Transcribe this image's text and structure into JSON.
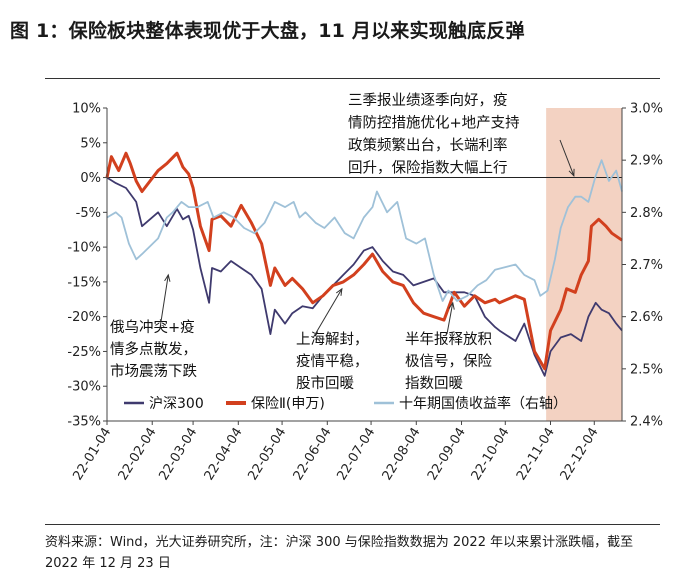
{
  "page": {
    "title": "图 1：保险板块整体表现优于大盘，11 月以来实现触底反弹",
    "source_text": "资料来源：Wind，光大证券研究所，注：沪深 300 与保险指数数据为 2022 年以来累计涨跌幅，截至 2022 年 12 月 23 日"
  },
  "chart_data": {
    "type": "line",
    "title": "",
    "y_left": {
      "ticks": [
        "10%",
        "5%",
        "0%",
        "-5%",
        "-10%",
        "-15%",
        "-20%",
        "-25%",
        "-30%",
        "-35%"
      ],
      "range": [
        -35,
        10
      ],
      "unit": "%"
    },
    "y_right": {
      "ticks": [
        "3.0%",
        "2.9%",
        "2.8%",
        "2.7%",
        "2.6%",
        "2.5%",
        "2.4%"
      ],
      "range": [
        2.4,
        3.0
      ],
      "unit": "%"
    },
    "x_ticks": [
      "22-01-04",
      "22-02-04",
      "22-03-04",
      "22-04-04",
      "22-05-04",
      "22-06-04",
      "22-07-04",
      "22-08-04",
      "22-09-04",
      "22-10-04",
      "22-11-04",
      "22-12-04"
    ],
    "x_range": [
      "2022-01-04",
      "2022-12-23"
    ],
    "zero_line": true,
    "highlight_range": [
      "2022-11-01",
      "2022-12-23"
    ],
    "highlight_color": "#f3d2c2",
    "series": [
      {
        "name": "沪深300",
        "axis": "left",
        "color": "#3f3a6e",
        "points": [
          [
            "2022-01-04",
            0.0
          ],
          [
            "2022-01-10",
            -0.8
          ],
          [
            "2022-01-17",
            -1.5
          ],
          [
            "2022-01-24",
            -3.5
          ],
          [
            "2022-01-28",
            -7.0
          ],
          [
            "2022-02-08",
            -5.0
          ],
          [
            "2022-02-14",
            -7.0
          ],
          [
            "2022-02-21",
            -4.5
          ],
          [
            "2022-02-25",
            -6.0
          ],
          [
            "2022-03-01",
            -5.5
          ],
          [
            "2022-03-04",
            -7.5
          ],
          [
            "2022-03-09",
            -13.0
          ],
          [
            "2022-03-15",
            -18.0
          ],
          [
            "2022-03-17",
            -13.0
          ],
          [
            "2022-03-23",
            -13.5
          ],
          [
            "2022-03-30",
            -12.0
          ],
          [
            "2022-04-06",
            -13.0
          ],
          [
            "2022-04-13",
            -14.0
          ],
          [
            "2022-04-20",
            -16.0
          ],
          [
            "2022-04-26",
            -22.5
          ],
          [
            "2022-04-29",
            -19.0
          ],
          [
            "2022-05-06",
            -21.0
          ],
          [
            "2022-05-11",
            -19.5
          ],
          [
            "2022-05-18",
            -18.5
          ],
          [
            "2022-05-25",
            -18.8
          ],
          [
            "2022-06-01",
            -17.0
          ],
          [
            "2022-06-08",
            -15.5
          ],
          [
            "2022-06-15",
            -14.0
          ],
          [
            "2022-06-22",
            -12.5
          ],
          [
            "2022-06-29",
            -10.5
          ],
          [
            "2022-07-05",
            -10.0
          ],
          [
            "2022-07-12",
            -12.0
          ],
          [
            "2022-07-19",
            -13.5
          ],
          [
            "2022-07-26",
            -14.0
          ],
          [
            "2022-08-02",
            -15.5
          ],
          [
            "2022-08-09",
            -15.0
          ],
          [
            "2022-08-16",
            -14.5
          ],
          [
            "2022-08-23",
            -16.5
          ],
          [
            "2022-08-30",
            -16.5
          ],
          [
            "2022-09-06",
            -16.5
          ],
          [
            "2022-09-13",
            -17.0
          ],
          [
            "2022-09-20",
            -20.0
          ],
          [
            "2022-09-27",
            -21.5
          ],
          [
            "2022-09-30",
            -22.0
          ],
          [
            "2022-10-11",
            -23.5
          ],
          [
            "2022-10-17",
            -21.0
          ],
          [
            "2022-10-24",
            -25.5
          ],
          [
            "2022-10-31",
            -28.5
          ],
          [
            "2022-11-04",
            -25.0
          ],
          [
            "2022-11-11",
            -23.0
          ],
          [
            "2022-11-18",
            -22.5
          ],
          [
            "2022-11-25",
            -23.5
          ],
          [
            "2022-11-30",
            -20.0
          ],
          [
            "2022-12-05",
            -18.0
          ],
          [
            "2022-12-09",
            -19.0
          ],
          [
            "2022-12-14",
            -19.5
          ],
          [
            "2022-12-19",
            -21.0
          ],
          [
            "2022-12-23",
            -22.0
          ]
        ]
      },
      {
        "name": "保险Ⅱ(申万)",
        "axis": "left",
        "color": "#d2401e",
        "points": [
          [
            "2022-01-04",
            0.0
          ],
          [
            "2022-01-07",
            3.0
          ],
          [
            "2022-01-12",
            1.0
          ],
          [
            "2022-01-17",
            3.5
          ],
          [
            "2022-01-20",
            2.0
          ],
          [
            "2022-01-24",
            -0.5
          ],
          [
            "2022-01-28",
            -2.0
          ],
          [
            "2022-02-08",
            1.0
          ],
          [
            "2022-02-14",
            2.0
          ],
          [
            "2022-02-21",
            3.5
          ],
          [
            "2022-02-25",
            1.5
          ],
          [
            "2022-03-01",
            0.5
          ],
          [
            "2022-03-04",
            -1.5
          ],
          [
            "2022-03-09",
            -7.0
          ],
          [
            "2022-03-15",
            -10.5
          ],
          [
            "2022-03-17",
            -6.0
          ],
          [
            "2022-03-23",
            -5.5
          ],
          [
            "2022-03-30",
            -7.0
          ],
          [
            "2022-04-06",
            -4.0
          ],
          [
            "2022-04-13",
            -6.5
          ],
          [
            "2022-04-20",
            -9.5
          ],
          [
            "2022-04-26",
            -15.5
          ],
          [
            "2022-04-29",
            -13.0
          ],
          [
            "2022-05-06",
            -15.5
          ],
          [
            "2022-05-11",
            -14.5
          ],
          [
            "2022-05-18",
            -16.0
          ],
          [
            "2022-05-25",
            -18.0
          ],
          [
            "2022-06-01",
            -17.0
          ],
          [
            "2022-06-08",
            -15.5
          ],
          [
            "2022-06-15",
            -15.0
          ],
          [
            "2022-06-22",
            -14.0
          ],
          [
            "2022-06-29",
            -12.5
          ],
          [
            "2022-07-05",
            -11.0
          ],
          [
            "2022-07-12",
            -13.5
          ],
          [
            "2022-07-19",
            -15.0
          ],
          [
            "2022-07-26",
            -15.5
          ],
          [
            "2022-08-02",
            -18.0
          ],
          [
            "2022-08-09",
            -19.5
          ],
          [
            "2022-08-16",
            -20.0
          ],
          [
            "2022-08-23",
            -20.5
          ],
          [
            "2022-08-30",
            -16.5
          ],
          [
            "2022-09-06",
            -18.5
          ],
          [
            "2022-09-13",
            -17.0
          ],
          [
            "2022-09-20",
            -18.0
          ],
          [
            "2022-09-27",
            -17.5
          ],
          [
            "2022-09-30",
            -18.0
          ],
          [
            "2022-10-11",
            -17.0
          ],
          [
            "2022-10-17",
            -17.5
          ],
          [
            "2022-10-24",
            -25.0
          ],
          [
            "2022-10-31",
            -27.5
          ],
          [
            "2022-11-04",
            -22.0
          ],
          [
            "2022-11-11",
            -19.0
          ],
          [
            "2022-11-15",
            -16.0
          ],
          [
            "2022-11-21",
            -16.5
          ],
          [
            "2022-11-25",
            -14.0
          ],
          [
            "2022-11-30",
            -12.0
          ],
          [
            "2022-12-02",
            -7.0
          ],
          [
            "2022-12-07",
            -6.0
          ],
          [
            "2022-12-12",
            -7.0
          ],
          [
            "2022-12-16",
            -8.0
          ],
          [
            "2022-12-23",
            -9.0
          ]
        ]
      },
      {
        "name": "十年期国债收益率（右轴）",
        "axis": "right",
        "color": "#9fc1d8",
        "points": [
          [
            "2022-01-04",
            2.79
          ],
          [
            "2022-01-10",
            2.8
          ],
          [
            "2022-01-14",
            2.79
          ],
          [
            "2022-01-19",
            2.74
          ],
          [
            "2022-01-24",
            2.71
          ],
          [
            "2022-01-28",
            2.72
          ],
          [
            "2022-02-08",
            2.75
          ],
          [
            "2022-02-14",
            2.79
          ],
          [
            "2022-02-18",
            2.8
          ],
          [
            "2022-02-24",
            2.82
          ],
          [
            "2022-03-01",
            2.81
          ],
          [
            "2022-03-07",
            2.81
          ],
          [
            "2022-03-14",
            2.82
          ],
          [
            "2022-03-18",
            2.79
          ],
          [
            "2022-03-25",
            2.8
          ],
          [
            "2022-04-01",
            2.79
          ],
          [
            "2022-04-08",
            2.77
          ],
          [
            "2022-04-15",
            2.76
          ],
          [
            "2022-04-22",
            2.78
          ],
          [
            "2022-04-29",
            2.82
          ],
          [
            "2022-05-06",
            2.81
          ],
          [
            "2022-05-12",
            2.82
          ],
          [
            "2022-05-16",
            2.79
          ],
          [
            "2022-05-20",
            2.8
          ],
          [
            "2022-05-27",
            2.78
          ],
          [
            "2022-06-02",
            2.77
          ],
          [
            "2022-06-09",
            2.79
          ],
          [
            "2022-06-16",
            2.76
          ],
          [
            "2022-06-22",
            2.75
          ],
          [
            "2022-06-29",
            2.79
          ],
          [
            "2022-07-05",
            2.81
          ],
          [
            "2022-07-08",
            2.84
          ],
          [
            "2022-07-15",
            2.8
          ],
          [
            "2022-07-22",
            2.82
          ],
          [
            "2022-07-28",
            2.75
          ],
          [
            "2022-08-04",
            2.74
          ],
          [
            "2022-08-10",
            2.75
          ],
          [
            "2022-08-16",
            2.68
          ],
          [
            "2022-08-22",
            2.63
          ],
          [
            "2022-08-26",
            2.65
          ],
          [
            "2022-09-01",
            2.63
          ],
          [
            "2022-09-08",
            2.64
          ],
          [
            "2022-09-15",
            2.66
          ],
          [
            "2022-09-21",
            2.67
          ],
          [
            "2022-09-27",
            2.69
          ],
          [
            "2022-10-11",
            2.7
          ],
          [
            "2022-10-17",
            2.68
          ],
          [
            "2022-10-24",
            2.67
          ],
          [
            "2022-10-28",
            2.64
          ],
          [
            "2022-11-02",
            2.65
          ],
          [
            "2022-11-07",
            2.71
          ],
          [
            "2022-11-11",
            2.77
          ],
          [
            "2022-11-16",
            2.81
          ],
          [
            "2022-11-21",
            2.83
          ],
          [
            "2022-11-25",
            2.83
          ],
          [
            "2022-11-30",
            2.82
          ],
          [
            "2022-12-05",
            2.87
          ],
          [
            "2022-12-09",
            2.9
          ],
          [
            "2022-12-14",
            2.86
          ],
          [
            "2022-12-19",
            2.88
          ],
          [
            "2022-12-23",
            2.84
          ]
        ]
      }
    ],
    "annotations": [
      {
        "lines": [
          "三季报业绩逐季向好，疫",
          "情防控措施优化+地产支持",
          "政策频繁出台，长端利率",
          "回升，保险指数大幅上行"
        ],
        "arrow_to": [
          "2022-11-20",
          2.87
        ],
        "arrow_axis": "right"
      },
      {
        "lines": [
          "俄乌冲突+疫",
          "情多点散发，",
          "市场震荡下跌"
        ],
        "arrow_to": [
          "2022-02-15",
          -14.0
        ],
        "arrow_axis": "left"
      },
      {
        "lines": [
          "上海解封，",
          "疫情平稳，",
          "股市回暖"
        ],
        "arrow_to": [
          "2022-06-14",
          -16.0
        ],
        "arrow_axis": "left"
      },
      {
        "lines": [
          "半年报释放积",
          "极信号，保险",
          "指数回暖"
        ],
        "arrow_to": [
          "2022-08-29",
          -18.0
        ],
        "arrow_axis": "left"
      }
    ],
    "legend": {
      "position": "bottom-left inside"
    }
  }
}
